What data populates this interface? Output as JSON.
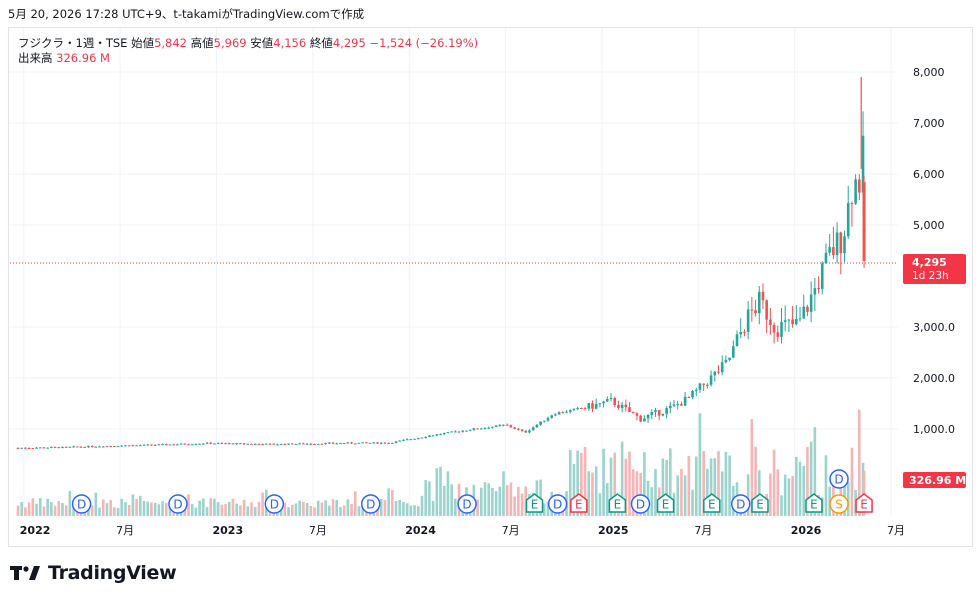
{
  "caption": "5月 20, 2026 17:28 UTC+9、t-takamiがTradingView.comで作成",
  "legend": {
    "symbol": "フジクラ・1週・TSE",
    "open_label": "始値",
    "open": "5,842",
    "high_label": "高値",
    "high": "5,969",
    "low_label": "安値",
    "low": "4,156",
    "close_label": "終値",
    "close": "4,295",
    "change": "−1,524 (−26.19%)",
    "volume_label": "出来高",
    "volume": "326.96 M"
  },
  "price_tag": {
    "price": "4,295",
    "countdown": "1d 23h"
  },
  "volume_tag": "326.96 M",
  "brand": "TradingView",
  "colors": {
    "up": "#26a69a",
    "down": "#ef5350",
    "up_vol": "#9bd3cd",
    "down_vol": "#f5b5b4",
    "dividend": "#2962ff",
    "earnings": "#089981",
    "earnings_red": "#f23645",
    "split": "#ff9800",
    "last_price": "#f23645"
  },
  "chart_data": {
    "type": "candlestick",
    "interval": "weekly",
    "y_ticks": [
      "8,000",
      "7,000",
      "6,000",
      "5,000",
      "3,000.0",
      "2,000.0",
      "1,000.0"
    ],
    "y_tick_values": [
      8000,
      7000,
      6000,
      5000,
      3000,
      2000,
      1000
    ],
    "ylim": [
      -1000,
      8600
    ],
    "x_labels": [
      {
        "label": "2022",
        "year": true,
        "t": 2022.0
      },
      {
        "label": "7月",
        "year": false,
        "t": 2022.5
      },
      {
        "label": "2023",
        "year": true,
        "t": 2023.0
      },
      {
        "label": "7月",
        "year": false,
        "t": 2023.5
      },
      {
        "label": "2024",
        "year": true,
        "t": 2024.0
      },
      {
        "label": "7月",
        "year": false,
        "t": 2024.5
      },
      {
        "label": "2025",
        "year": true,
        "t": 2025.0
      },
      {
        "label": "7月",
        "year": false,
        "t": 2025.5
      },
      {
        "label": "2026",
        "year": true,
        "t": 2026.0
      },
      {
        "label": "7月",
        "year": false,
        "t": 2026.5
      }
    ],
    "last_bar": {
      "open": 5842,
      "high": 5969,
      "low": 4156,
      "close": 4295,
      "volume_m": 326.96
    },
    "price_path": [
      {
        "t": 2021.97,
        "p": 630
      },
      {
        "t": 2022.2,
        "p": 640
      },
      {
        "t": 2022.45,
        "p": 670
      },
      {
        "t": 2022.7,
        "p": 690
      },
      {
        "t": 2022.95,
        "p": 720
      },
      {
        "t": 2023.3,
        "p": 700
      },
      {
        "t": 2023.6,
        "p": 720
      },
      {
        "t": 2023.9,
        "p": 730
      },
      {
        "t": 2024.12,
        "p": 880
      },
      {
        "t": 2024.3,
        "p": 980
      },
      {
        "t": 2024.5,
        "p": 1080
      },
      {
        "t": 2024.6,
        "p": 930
      },
      {
        "t": 2024.75,
        "p": 1300
      },
      {
        "t": 2024.95,
        "p": 1450
      },
      {
        "t": 2025.05,
        "p": 1550
      },
      {
        "t": 2025.2,
        "p": 1200
      },
      {
        "t": 2025.35,
        "p": 1400
      },
      {
        "t": 2025.45,
        "p": 1600
      },
      {
        "t": 2025.55,
        "p": 1950
      },
      {
        "t": 2025.65,
        "p": 2300
      },
      {
        "t": 2025.75,
        "p": 3150
      },
      {
        "t": 2025.82,
        "p": 3500
      },
      {
        "t": 2025.9,
        "p": 3000
      },
      {
        "t": 2026.02,
        "p": 3050
      },
      {
        "t": 2026.1,
        "p": 3700
      },
      {
        "t": 2026.18,
        "p": 4400
      },
      {
        "t": 2026.25,
        "p": 4800
      },
      {
        "t": 2026.3,
        "p": 5800
      },
      {
        "t": 2026.34,
        "p": 5900
      },
      {
        "t": 2026.36,
        "p": 6500
      }
    ],
    "events": [
      {
        "type": "D",
        "t": 2022.3
      },
      {
        "type": "D",
        "t": 2022.8
      },
      {
        "type": "D",
        "t": 2023.3
      },
      {
        "type": "D",
        "t": 2023.8
      },
      {
        "type": "D",
        "t": 2024.3
      },
      {
        "type": "E",
        "t": 2024.65
      },
      {
        "type": "D",
        "t": 2024.77
      },
      {
        "type": "E",
        "t": 2024.88,
        "red": true
      },
      {
        "type": "E",
        "t": 2025.08
      },
      {
        "type": "D",
        "t": 2025.2
      },
      {
        "type": "E",
        "t": 2025.33
      },
      {
        "type": "E",
        "t": 2025.57
      },
      {
        "type": "D",
        "t": 2025.72
      },
      {
        "type": "E",
        "t": 2025.82
      },
      {
        "type": "E",
        "t": 2026.1
      },
      {
        "type": "S",
        "t": 2026.23
      },
      {
        "type": "D",
        "t": 2026.23,
        "upper": true
      },
      {
        "type": "E",
        "t": 2026.36,
        "red": true
      }
    ]
  }
}
